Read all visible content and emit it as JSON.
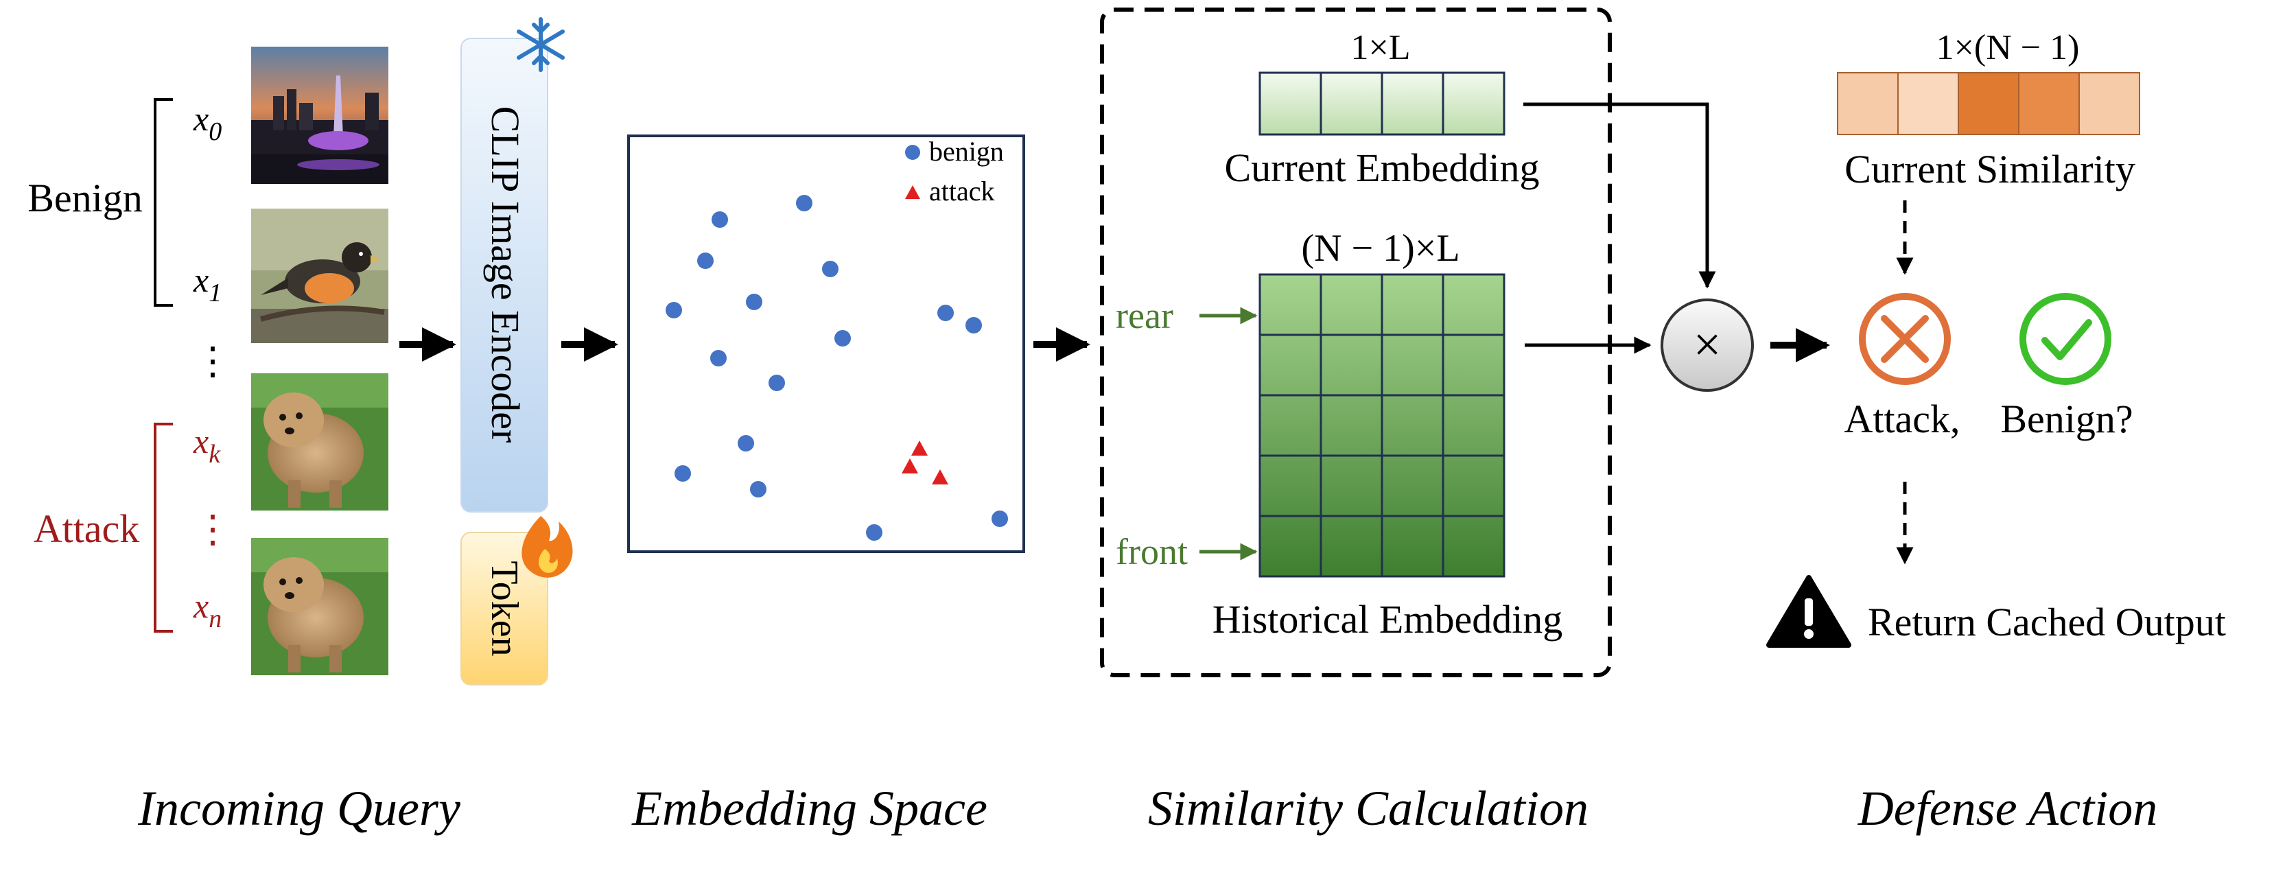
{
  "input": {
    "benign_label": "Benign",
    "attack_label": "Attack",
    "vdots": "⋮",
    "queries": [
      {
        "var": "x",
        "sub": "0",
        "group": "benign",
        "image": "city-fountain-night-photo"
      },
      {
        "var": "x",
        "sub": "1",
        "group": "benign",
        "image": "bird-on-branch-photo"
      },
      {
        "var": "x",
        "sub": "k",
        "group": "attack",
        "image": "fluffy-dog-photo"
      },
      {
        "var": "x",
        "sub": "n",
        "group": "attack",
        "image": "fluffy-dog-photo"
      }
    ],
    "caption": "Incoming Query"
  },
  "encoder": {
    "label": "CLIP Image Encoder",
    "token_label": "Token",
    "frozen_icon": "snowflake-icon",
    "trainable_icon": "fire-icon"
  },
  "embedding_space": {
    "legend": [
      {
        "label": "benign",
        "marker": "circle",
        "color": "#4472c4"
      },
      {
        "label": "attack",
        "marker": "triangle",
        "color": "#e02020"
      }
    ],
    "caption": "Embedding Space"
  },
  "similarity": {
    "current_dim": "1×L",
    "current_label": "Current Embedding",
    "history_dim": "(N − 1)×L",
    "history_label": "Historical Embedding",
    "rear_label": "rear",
    "front_label": "front",
    "caption": "Similarity Calculation"
  },
  "defense": {
    "sim_dim": "1×(N − 1)",
    "sim_label": "Current Similarity",
    "attack_label": "Attack,",
    "benign_label": "Benign?",
    "return_label": "Return Cached Output",
    "multiply_symbol": "×",
    "caption": "Defense Action"
  },
  "colors": {
    "benign": "#4472c4",
    "attack": "#e02020",
    "attack_text": "#a01c1c",
    "arrow_green": "#4a7a30",
    "reject": "#e0703a",
    "accept": "#3cbf2a",
    "sim_light": "#f6cba8",
    "sim_dark": "#e07a30"
  }
}
